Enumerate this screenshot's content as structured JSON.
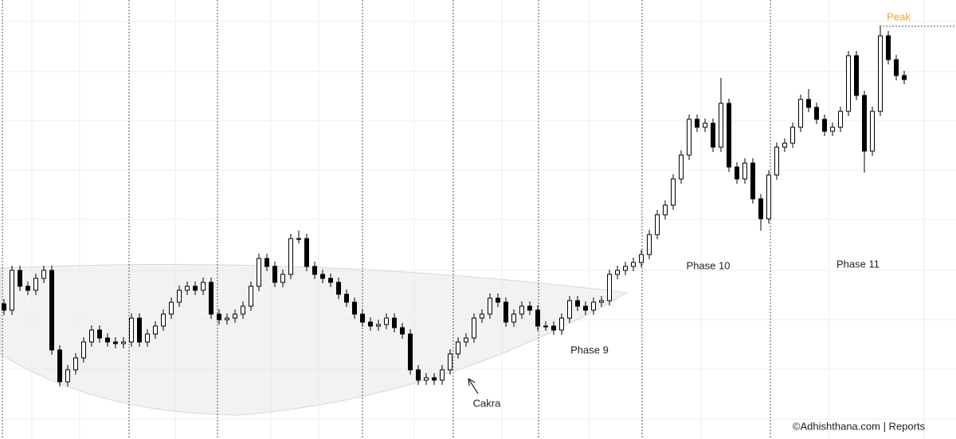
{
  "chart_data": {
    "type": "candlestick",
    "ylim": [
      0,
      552
    ],
    "open": [
      170,
      162,
      212,
      192,
      187,
      202,
      212,
      112,
      72,
      87,
      102,
      122,
      137,
      127,
      122,
      120,
      122,
      152,
      122,
      132,
      142,
      157,
      172,
      187,
      192,
      187,
      197,
      157,
      150,
      152,
      157,
      167,
      192,
      227,
      217,
      197,
      207,
      252,
      252,
      217,
      207,
      202,
      197,
      182,
      172,
      157,
      147,
      142,
      144,
      152,
      140,
      132,
      87,
      74,
      77,
      74,
      87,
      107,
      122,
      127,
      152,
      157,
      177,
      172,
      147,
      157,
      167,
      162,
      142,
      142,
      137,
      152,
      174,
      167,
      162,
      172,
      174,
      207,
      212,
      217,
      222,
      232,
      257,
      282,
      294,
      327,
      357,
      402,
      392,
      397,
      367,
      422,
      342,
      327,
      347,
      302,
      277,
      332,
      367,
      372,
      392,
      427,
      417,
      402,
      387,
      392,
      412,
      482,
      432,
      362,
      412,
      507,
      477,
      457
    ],
    "high": [
      176,
      218,
      218,
      198,
      208,
      218,
      218,
      118,
      93,
      108,
      128,
      143,
      143,
      133,
      128,
      128,
      158,
      158,
      138,
      148,
      163,
      178,
      193,
      198,
      198,
      203,
      203,
      163,
      158,
      163,
      173,
      198,
      233,
      233,
      223,
      213,
      258,
      262,
      258,
      223,
      213,
      208,
      203,
      188,
      178,
      163,
      153,
      150,
      158,
      158,
      146,
      138,
      93,
      83,
      83,
      93,
      113,
      128,
      133,
      158,
      163,
      183,
      183,
      178,
      163,
      173,
      173,
      168,
      148,
      148,
      158,
      180,
      180,
      173,
      178,
      180,
      213,
      218,
      223,
      228,
      238,
      263,
      288,
      300,
      333,
      363,
      408,
      408,
      403,
      403,
      454,
      428,
      348,
      353,
      353,
      308,
      338,
      373,
      378,
      398,
      433,
      440,
      423,
      408,
      398,
      418,
      488,
      488,
      438,
      418,
      520,
      513,
      483,
      463
    ],
    "low": [
      156,
      156,
      186,
      181,
      181,
      196,
      106,
      66,
      66,
      81,
      96,
      116,
      121,
      116,
      114,
      114,
      116,
      116,
      116,
      126,
      136,
      151,
      166,
      181,
      181,
      181,
      151,
      144,
      144,
      146,
      151,
      161,
      186,
      211,
      191,
      191,
      201,
      246,
      211,
      201,
      196,
      191,
      176,
      166,
      151,
      141,
      136,
      136,
      138,
      134,
      126,
      81,
      68,
      68,
      68,
      68,
      81,
      101,
      116,
      121,
      146,
      151,
      166,
      141,
      141,
      151,
      156,
      136,
      136,
      131,
      131,
      146,
      161,
      156,
      156,
      166,
      168,
      201,
      206,
      211,
      216,
      226,
      251,
      276,
      288,
      321,
      351,
      386,
      386,
      361,
      361,
      336,
      321,
      321,
      296,
      262,
      271,
      326,
      361,
      366,
      386,
      411,
      396,
      381,
      381,
      386,
      406,
      426,
      335,
      356,
      406,
      471,
      451,
      446
    ],
    "close": [
      162,
      212,
      192,
      187,
      202,
      212,
      112,
      72,
      87,
      102,
      122,
      137,
      127,
      122,
      120,
      122,
      152,
      122,
      132,
      142,
      157,
      172,
      187,
      192,
      187,
      197,
      157,
      150,
      152,
      157,
      167,
      192,
      227,
      217,
      197,
      207,
      252,
      252,
      217,
      207,
      202,
      197,
      182,
      172,
      157,
      147,
      142,
      144,
      152,
      140,
      132,
      87,
      74,
      77,
      74,
      87,
      107,
      122,
      127,
      152,
      157,
      177,
      172,
      147,
      157,
      167,
      162,
      142,
      142,
      137,
      152,
      174,
      167,
      162,
      172,
      174,
      207,
      212,
      217,
      222,
      232,
      257,
      282,
      294,
      327,
      357,
      402,
      392,
      397,
      367,
      422,
      342,
      327,
      347,
      302,
      277,
      332,
      367,
      372,
      392,
      427,
      417,
      402,
      387,
      392,
      412,
      482,
      432,
      362,
      412,
      507,
      477,
      457,
      452
    ],
    "up_color": "#ffffff",
    "down_color": "#000000",
    "stroke_color": "#000000",
    "annotations": {
      "peak": "Peak",
      "cakra": "Cakra",
      "phase_9": "Phase 9",
      "phase_10": "Phase 10",
      "phase_11": "Phase 11"
    },
    "footer": "©Adhishthana.com | Reports"
  }
}
